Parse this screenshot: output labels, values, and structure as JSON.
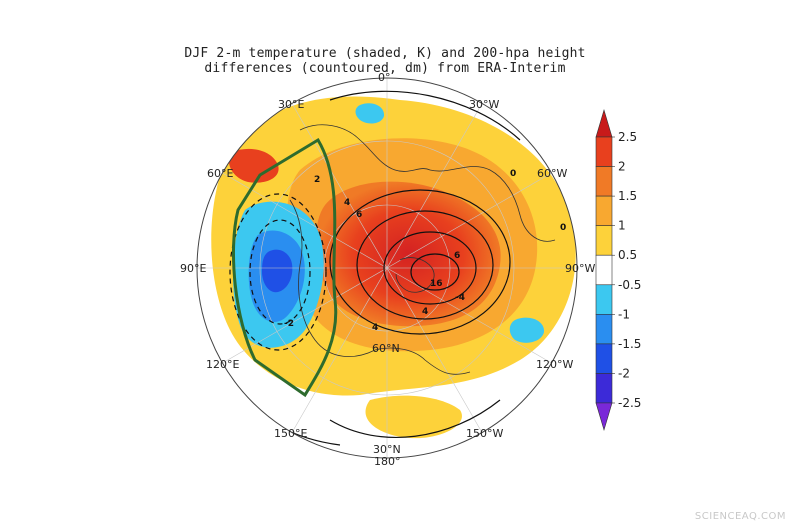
{
  "title": {
    "line1": "DJF 2-m temperature (shaded, K) and 200-hpa height",
    "line2": "differences (countoured, dm) from ERA-Interim"
  },
  "longitude_labels": [
    "0°",
    "30°W",
    "60°W",
    "90°W",
    "120°W",
    "150°W",
    "180°",
    "150°E",
    "120°E",
    "90°E",
    "60°E",
    "30°E"
  ],
  "latitude_labels": [
    "30°N",
    "60°N"
  ],
  "colorbar": {
    "ticks": [
      "2.5",
      "2",
      "1.5",
      "1",
      "0.5",
      "-0.5",
      "-1",
      "-1.5",
      "-2",
      "-2.5"
    ],
    "colors": [
      "#c81a1a",
      "#e8401e",
      "#f07a26",
      "#f8a830",
      "#fdd23a",
      "#ffffff",
      "#3cc8f0",
      "#2a8ef0",
      "#1f50e6",
      "#3c2ad8",
      "#7a28d8"
    ]
  },
  "contour_labels": [
    "0",
    "2",
    "4",
    "6",
    "-2",
    "4",
    "6",
    "4",
    "16",
    "-4",
    "0"
  ],
  "watermark": "SCIENCEAQ.COM"
}
